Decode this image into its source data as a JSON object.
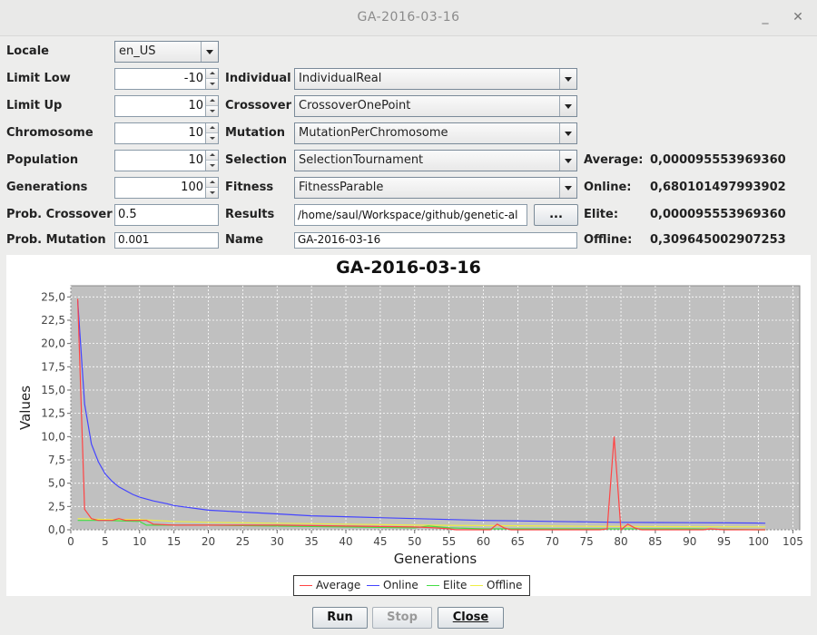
{
  "window": {
    "title": "GA-2016-03-16",
    "minimize": "_",
    "close": "✕"
  },
  "form": {
    "locale": {
      "label": "Locale",
      "value": "en_US"
    },
    "limit_low": {
      "label": "Limit Low",
      "value": "-10"
    },
    "limit_up": {
      "label": "Limit Up",
      "value": "10"
    },
    "chromosome": {
      "label": "Chromosome",
      "value": "10"
    },
    "population": {
      "label": "Population",
      "value": "10"
    },
    "generations": {
      "label": "Generations",
      "value": "100"
    },
    "prob_crossover": {
      "label": "Prob. Crossover",
      "value": "0.5"
    },
    "prob_mutation": {
      "label": "Prob. Mutation",
      "value": "0.001"
    },
    "individual": {
      "label": "Individual",
      "value": "IndividualReal"
    },
    "crossover": {
      "label": "Crossover",
      "value": "CrossoverOnePoint"
    },
    "mutation": {
      "label": "Mutation",
      "value": "MutationPerChromosome"
    },
    "selection": {
      "label": "Selection",
      "value": "SelectionTournament"
    },
    "fitness": {
      "label": "Fitness",
      "value": "FitnessParable"
    },
    "results": {
      "label": "Results",
      "value": "/home/saul/Workspace/github/genetic-al",
      "browse": "..."
    },
    "name": {
      "label": "Name",
      "value": "GA-2016-03-16"
    }
  },
  "stats": {
    "average": {
      "label": "Average:",
      "value": "0,000095553969360"
    },
    "online": {
      "label": "Online:",
      "value": "0,680101497993902"
    },
    "elite": {
      "label": "Elite:",
      "value": "0,000095553969360"
    },
    "offline": {
      "label": "Offline:",
      "value": "0,309645002907253"
    }
  },
  "buttons": {
    "run": "Run",
    "stop": "Stop",
    "close": "Close"
  },
  "colors": {
    "average": "#ff4444",
    "online": "#4444ff",
    "elite": "#44dd44",
    "offline": "#eeee44",
    "plot_bg": "#c0c0c0"
  },
  "chart_data": {
    "type": "line",
    "title": "GA-2016-03-16",
    "xlabel": "Generations",
    "ylabel": "Values",
    "xlim": [
      0,
      106
    ],
    "ylim": [
      0,
      26.2
    ],
    "xticks": [
      "0",
      "5",
      "10",
      "15",
      "20",
      "25",
      "30",
      "35",
      "40",
      "45",
      "50",
      "55",
      "60",
      "65",
      "70",
      "75",
      "80",
      "85",
      "90",
      "95",
      "100",
      "105"
    ],
    "yticks": [
      "0,0",
      "2,5",
      "5,0",
      "7,5",
      "10,0",
      "12,5",
      "15,0",
      "17,5",
      "20,0",
      "22,5",
      "25,0"
    ],
    "grid": true,
    "legend": "bottom",
    "series": [
      {
        "name": "Average",
        "color": "#ff4444",
        "x": [
          1,
          2,
          3,
          4,
          5,
          6,
          7,
          8,
          9,
          10,
          11,
          12,
          15,
          20,
          30,
          40,
          50,
          53,
          55,
          56,
          60,
          61,
          62,
          63,
          64,
          70,
          75,
          77,
          78,
          79,
          80,
          81,
          82,
          83,
          90,
          92,
          93,
          95,
          100,
          101
        ],
        "y": [
          24.8,
          2.2,
          1.2,
          1.0,
          1.0,
          1.0,
          1.2,
          1.0,
          1.0,
          1.0,
          1.0,
          0.6,
          0.5,
          0.5,
          0.5,
          0.4,
          0.3,
          0.2,
          0.1,
          0.0,
          0.0,
          0.0,
          0.6,
          0.2,
          0.0,
          0.0,
          0.0,
          0.0,
          0.1,
          10.0,
          0.0,
          0.6,
          0.2,
          0.0,
          0.0,
          0.0,
          0.1,
          0.0,
          0.0,
          0.0
        ]
      },
      {
        "name": "Online",
        "color": "#4444ff",
        "x": [
          1,
          2,
          3,
          4,
          5,
          6,
          7,
          8,
          9,
          10,
          12,
          14,
          15,
          20,
          25,
          30,
          35,
          40,
          45,
          50,
          55,
          60,
          65,
          70,
          75,
          80,
          85,
          90,
          95,
          100,
          101
        ],
        "y": [
          24.6,
          13.5,
          9.2,
          7.3,
          6.0,
          5.2,
          4.6,
          4.2,
          3.8,
          3.5,
          3.1,
          2.8,
          2.6,
          2.1,
          1.9,
          1.7,
          1.5,
          1.4,
          1.3,
          1.2,
          1.1,
          1.0,
          0.95,
          0.9,
          0.85,
          0.8,
          0.78,
          0.76,
          0.74,
          0.72,
          0.7
        ]
      },
      {
        "name": "Elite",
        "color": "#44dd44",
        "x": [
          1,
          3,
          5,
          10,
          11,
          15,
          20,
          30,
          40,
          50,
          52,
          55,
          60,
          70,
          80,
          90,
          100,
          101
        ],
        "y": [
          1.0,
          1.0,
          1.0,
          0.9,
          0.5,
          0.5,
          0.5,
          0.4,
          0.3,
          0.2,
          0.4,
          0.2,
          0.1,
          0.1,
          0.1,
          0.1,
          0.0,
          0.0
        ]
      },
      {
        "name": "Offline",
        "color": "#eeee44",
        "x": [
          1,
          5,
          10,
          15,
          20,
          30,
          40,
          50,
          60,
          70,
          80,
          90,
          100,
          101
        ],
        "y": [
          1.2,
          1.1,
          1.1,
          0.9,
          0.8,
          0.7,
          0.6,
          0.5,
          0.45,
          0.4,
          0.35,
          0.33,
          0.31,
          0.31
        ]
      }
    ]
  }
}
